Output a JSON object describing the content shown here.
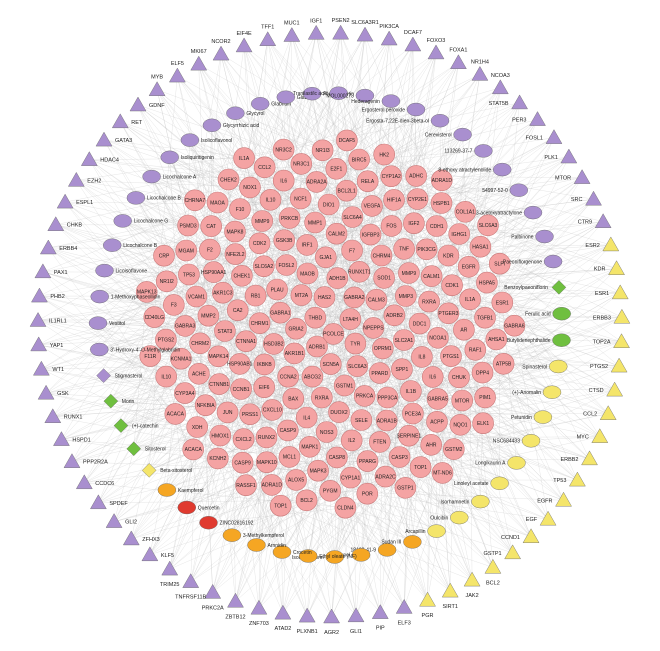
{
  "network": {
    "colors": {
      "target": "#f4a3a3",
      "target_stroke": "#c97a7a",
      "purple": "#a98fcf",
      "green": "#6fbf3f",
      "yellow": "#f4e56a",
      "orange": "#f5a623",
      "red": "#e03a2f",
      "edge": "#bdbdbd"
    },
    "targets": [
      "PCOLCE",
      "THBD",
      "LTA4H",
      "ADRB1",
      "HAS2",
      "TYR",
      "GRIA2",
      "GABRA2",
      "SCN5A",
      "MT2A",
      "NPEPPS",
      "AKR1B1",
      "ADH1B",
      "SLC6A3",
      "GABRA1",
      "CALM3",
      "ABCG2",
      "MAOB",
      "OPRM1",
      "HSD3B2",
      "RUNX1T1",
      "GSTM1",
      "PLAU",
      "ADRB2",
      "CCNA2",
      "GJA1",
      "PPARD",
      "CHRM1",
      "SOD1",
      "RXRA",
      "FOSL2",
      "SLC2A1",
      "IKBKB",
      "F7",
      "PRKCA",
      "RB1",
      "MMP3",
      "BAX",
      "IRF1",
      "SPP1",
      "CTNNA1",
      "CHRM4",
      "DUOX2",
      "SLC6A2",
      "DDC1",
      "EIF6",
      "CALM2",
      "PPP3CA",
      "CA2",
      "MMP9",
      "IL4",
      "GSK3B",
      "IL8",
      "HSP90AB1",
      "IGFBP3",
      "SELE",
      "CHEK1",
      "RXRA",
      "CXCL10",
      "MMP1",
      "IL1B",
      "STAT3",
      "TNF",
      "NOS3",
      "CDK2",
      "NCOA1",
      "CCNB1",
      "SLC6A4",
      "ADRA1B",
      "AKR1C3",
      "CALM1",
      "CASP9",
      "PRKCB",
      "IL6",
      "MAPK14",
      "FOS",
      "IL2",
      "NFE2L2",
      "PTGER3",
      "PRSS1",
      "DIO1",
      "PCE3A",
      "MMP2",
      "PIK3CG",
      "MAPK1",
      "MMP9",
      "PTGS1",
      "CTNNB1",
      "VEGFA",
      "FTEN",
      "HSP90AA1",
      "CDK1",
      "RUNX2",
      "NCF1",
      "GABRA5",
      "CHRM2",
      "IGF2",
      "CASP8",
      "MAPK8",
      "AR",
      "JUN",
      "BCL2L1",
      "SERPINE1",
      "VCAM1",
      "KDR",
      "MCL1",
      "IL10",
      "CHUK",
      "ACHE",
      "HIF1A",
      "PPARG",
      "F2",
      "IL1A",
      "CXCL2",
      "ADRA2A",
      "ACPP",
      "GABRA3",
      "CDH1",
      "MAPK3",
      "F10",
      "RAF1",
      "NFKBIA",
      "RELA",
      "CASP3",
      "TP53",
      "EGFR",
      "MAPK10",
      "IL6",
      "MTOR",
      "KCNMA1",
      "CYP2E1",
      "CYP1A1",
      "CAT",
      "TGFB1",
      "HMOX1",
      "E2F1",
      "AHR",
      "F3",
      "IGHG1",
      "ALOX5",
      "NOX1",
      "DPP4",
      "CYP3A4",
      "CYP1A2",
      "ADRA2C",
      "MGAM",
      "HSPA5",
      "CASP9",
      "NR3C1",
      "NQO1",
      "PTGS2",
      "HSPB1",
      "PYGM",
      "MAOA",
      "AHSA1",
      "XDH",
      "BIRC5",
      "TOP1",
      "NR1I2",
      "HASA1",
      "ADRA1D",
      "CCL2",
      "PIM1",
      "IL10",
      "ADHC",
      "POR",
      "PSMD3",
      "ESR1",
      "KCNH2",
      "NR1I3",
      "GSTM2",
      "CD40LG",
      "COL1A1",
      "BCL2",
      "CHEK2",
      "ATP5B",
      "ACACA",
      "HK2",
      "GSTP1",
      "CRP",
      "SLPI",
      "RASSF1",
      "NR3C2",
      "ELK1",
      "F11R",
      "ADRA1D",
      "CLDN4",
      "CHRNA7",
      "GABRA6",
      "ACACA",
      "DCAF5",
      "MT-ND6",
      "MAPK13",
      "SLC6A3",
      "TOP1",
      "IL1A"
    ],
    "ring_shapes": [
      {
        "label": "ELF5",
        "shape": "triangle",
        "color": "purple"
      },
      {
        "label": "MKI67",
        "shape": "triangle",
        "color": "purple"
      },
      {
        "label": "NCOR2",
        "shape": "triangle",
        "color": "purple"
      },
      {
        "label": "EIF4E",
        "shape": "triangle",
        "color": "purple"
      },
      {
        "label": "TFF1",
        "shape": "triangle",
        "color": "purple"
      },
      {
        "label": "MUC1",
        "shape": "triangle",
        "color": "purple"
      },
      {
        "label": "IGF1",
        "shape": "triangle",
        "color": "purple"
      },
      {
        "label": "PSEN2",
        "shape": "triangle",
        "color": "purple"
      },
      {
        "label": "SLC6A3R1",
        "shape": "triangle",
        "color": "purple"
      },
      {
        "label": "PIK3CA",
        "shape": "triangle",
        "color": "purple"
      },
      {
        "label": "DCAF7",
        "shape": "triangle",
        "color": "purple"
      },
      {
        "label": "FOXO3",
        "shape": "triangle",
        "color": "purple"
      },
      {
        "label": "FOXA1",
        "shape": "triangle",
        "color": "purple"
      },
      {
        "label": "NR1H4",
        "shape": "triangle",
        "color": "purple"
      },
      {
        "label": "NCOA3",
        "shape": "triangle",
        "color": "purple"
      },
      {
        "label": "STAT5B",
        "shape": "triangle",
        "color": "purple"
      },
      {
        "label": "PER3",
        "shape": "triangle",
        "color": "purple"
      },
      {
        "label": "FOSL1",
        "shape": "triangle",
        "color": "purple"
      },
      {
        "label": "PLK1",
        "shape": "triangle",
        "color": "purple"
      },
      {
        "label": "MTOR",
        "shape": "triangle",
        "color": "purple"
      },
      {
        "label": "SRC",
        "shape": "triangle",
        "color": "purple"
      },
      {
        "label": "CTR9",
        "shape": "triangle",
        "color": "purple"
      },
      {
        "label": "ESR2",
        "shape": "triangle",
        "color": "yellow"
      },
      {
        "label": "KDR",
        "shape": "triangle",
        "color": "yellow"
      },
      {
        "label": "ESR1",
        "shape": "triangle",
        "color": "yellow"
      },
      {
        "label": "ERBB3",
        "shape": "triangle",
        "color": "yellow"
      },
      {
        "label": "TOP2A",
        "shape": "triangle",
        "color": "yellow"
      },
      {
        "label": "PTGS2",
        "shape": "triangle",
        "color": "yellow"
      },
      {
        "label": "CTSD",
        "shape": "triangle",
        "color": "yellow"
      },
      {
        "label": "CCL2",
        "shape": "triangle",
        "color": "yellow"
      },
      {
        "label": "MYC",
        "shape": "triangle",
        "color": "yellow"
      },
      {
        "label": "ERBB2",
        "shape": "triangle",
        "color": "yellow"
      },
      {
        "label": "TP53",
        "shape": "triangle",
        "color": "yellow"
      },
      {
        "label": "EGFR",
        "shape": "triangle",
        "color": "yellow"
      },
      {
        "label": "EGF",
        "shape": "triangle",
        "color": "yellow"
      },
      {
        "label": "CCND1",
        "shape": "triangle",
        "color": "yellow"
      },
      {
        "label": "GSTP1",
        "shape": "triangle",
        "color": "yellow"
      },
      {
        "label": "BCL2",
        "shape": "triangle",
        "color": "yellow"
      },
      {
        "label": "JAK2",
        "shape": "triangle",
        "color": "yellow"
      },
      {
        "label": "SIRT1",
        "shape": "triangle",
        "color": "yellow"
      },
      {
        "label": "PGR",
        "shape": "triangle",
        "color": "yellow"
      },
      {
        "label": "ELF3",
        "shape": "triangle",
        "color": "purple"
      },
      {
        "label": "PIP",
        "shape": "triangle",
        "color": "purple"
      },
      {
        "label": "GLI1",
        "shape": "triangle",
        "color": "purple"
      },
      {
        "label": "AGR2",
        "shape": "triangle",
        "color": "purple"
      },
      {
        "label": "PLXNB1",
        "shape": "triangle",
        "color": "purple"
      },
      {
        "label": "ATAD2",
        "shape": "triangle",
        "color": "purple"
      },
      {
        "label": "ZNF703",
        "shape": "triangle",
        "color": "purple"
      },
      {
        "label": "ZBTB12",
        "shape": "triangle",
        "color": "purple"
      },
      {
        "label": "PRKC2A",
        "shape": "triangle",
        "color": "purple"
      },
      {
        "label": "TNFRSF11B",
        "shape": "triangle",
        "color": "purple"
      },
      {
        "label": "TRIM25",
        "shape": "triangle",
        "color": "purple"
      },
      {
        "label": "KLF5",
        "shape": "triangle",
        "color": "purple"
      },
      {
        "label": "ZFHX3",
        "shape": "triangle",
        "color": "purple"
      },
      {
        "label": "GLI2",
        "shape": "triangle",
        "color": "purple"
      },
      {
        "label": "SPDEF",
        "shape": "triangle",
        "color": "purple"
      },
      {
        "label": "CCDC6",
        "shape": "triangle",
        "color": "purple"
      },
      {
        "label": "PPP2R2A",
        "shape": "triangle",
        "color": "purple"
      },
      {
        "label": "HSPD1",
        "shape": "triangle",
        "color": "purple"
      },
      {
        "label": "RUNX1",
        "shape": "triangle",
        "color": "purple"
      },
      {
        "label": "GSK",
        "shape": "triangle",
        "color": "purple"
      },
      {
        "label": "WT1",
        "shape": "triangle",
        "color": "purple"
      },
      {
        "label": "YAP1",
        "shape": "triangle",
        "color": "purple"
      },
      {
        "label": "IL1RL1",
        "shape": "triangle",
        "color": "purple"
      },
      {
        "label": "PHB2",
        "shape": "triangle",
        "color": "purple"
      },
      {
        "label": "PAX1",
        "shape": "triangle",
        "color": "purple"
      },
      {
        "label": "ERBB4",
        "shape": "triangle",
        "color": "purple"
      },
      {
        "label": "CHKB",
        "shape": "triangle",
        "color": "purple"
      },
      {
        "label": "ESPL1",
        "shape": "triangle",
        "color": "purple"
      },
      {
        "label": "EZH2",
        "shape": "triangle",
        "color": "purple"
      },
      {
        "label": "HDAC4",
        "shape": "triangle",
        "color": "purple"
      },
      {
        "label": "GATA3",
        "shape": "triangle",
        "color": "purple"
      },
      {
        "label": "RET",
        "shape": "triangle",
        "color": "purple"
      },
      {
        "label": "GDNF",
        "shape": "triangle",
        "color": "purple"
      },
      {
        "label": "MYB",
        "shape": "triangle",
        "color": "purple"
      }
    ],
    "compounds": [
      {
        "label": "Glycyrol",
        "shape": "ellipse",
        "color": "purple"
      },
      {
        "label": "Glabridin",
        "shape": "ellipse",
        "color": "purple"
      },
      {
        "label": "Glabrene",
        "shape": "ellipse",
        "color": "purple"
      },
      {
        "label": "Formononetin",
        "shape": "ellipse",
        "color": "purple"
      },
      {
        "label": "Tranilast/ic acid",
        "shape": "ellipse",
        "color": "purple"
      },
      {
        "label": "MOL000273",
        "shape": "ellipse",
        "color": "purple"
      },
      {
        "label": "Hederagenin",
        "shape": "ellipse",
        "color": "purple"
      },
      {
        "label": "Ergosterol peroxide",
        "shape": "ellipse",
        "color": "purple"
      },
      {
        "label": "Ergosta-7,22E-dien-3beta-ol",
        "shape": "ellipse",
        "color": "purple"
      },
      {
        "label": "Cerevisterol",
        "shape": "ellipse",
        "color": "purple"
      },
      {
        "label": "113269-37-7",
        "shape": "ellipse",
        "color": "purple"
      },
      {
        "label": "8-ethoxy atractylenolide",
        "shape": "ellipse",
        "color": "purple"
      },
      {
        "label": "54997-52-0",
        "shape": "ellipse",
        "color": "purple"
      },
      {
        "label": "3-acetoxyatractylone",
        "shape": "ellipse",
        "color": "purple"
      },
      {
        "label": "Palbinone",
        "shape": "ellipse",
        "color": "purple"
      },
      {
        "label": "Paeoniflorgenone",
        "shape": "ellipse",
        "color": "purple"
      },
      {
        "label": "Benzoylpaeoniflorin",
        "shape": "diamond",
        "color": "green"
      },
      {
        "label": "Ferulic acid",
        "shape": "ellipse",
        "color": "green"
      },
      {
        "label": "Butylidenephthalide",
        "shape": "ellipse",
        "color": "green"
      },
      {
        "label": "Spinasterol",
        "shape": "ellipse",
        "color": "yellow"
      },
      {
        "label": "(+)-Anomalin",
        "shape": "ellipse",
        "color": "yellow"
      },
      {
        "label": "Petunidin",
        "shape": "ellipse",
        "color": "yellow"
      },
      {
        "label": "NSC684433",
        "shape": "ellipse",
        "color": "yellow"
      },
      {
        "label": "Longikaurin A",
        "shape": "ellipse",
        "color": "yellow"
      },
      {
        "label": "Linoleyl acetate",
        "shape": "ellipse",
        "color": "yellow"
      },
      {
        "label": "Isorhamnetin",
        "shape": "ellipse",
        "color": "yellow"
      },
      {
        "label": "Oulcibin",
        "shape": "ellipse",
        "color": "yellow"
      },
      {
        "label": "Arcapillin",
        "shape": "ellipse",
        "color": "yellow"
      },
      {
        "label": "Sudan III",
        "shape": "ellipse",
        "color": "orange"
      },
      {
        "label": "18103-41-9",
        "shape": "ellipse",
        "color": "orange"
      },
      {
        "label": "Mandenol",
        "shape": "ellipse",
        "color": "orange"
      },
      {
        "label": "Isoimperatorin",
        "shape": "ellipse",
        "color": "orange"
      },
      {
        "label": "Ethyl oleate (NF)",
        "shape": "ellipse",
        "color": "orange"
      },
      {
        "label": "Crocetin",
        "shape": "ellipse",
        "color": "orange"
      },
      {
        "label": "Arnnidin",
        "shape": "ellipse",
        "color": "orange"
      },
      {
        "label": "3-Methylkempferol",
        "shape": "ellipse",
        "color": "orange"
      },
      {
        "label": "ZINC02816192",
        "shape": "ellipse",
        "color": "red"
      },
      {
        "label": "Quercetin",
        "shape": "ellipse",
        "color": "red"
      },
      {
        "label": "Kaempferol",
        "shape": "ellipse",
        "color": "orange"
      },
      {
        "label": "Beta-sitosterol",
        "shape": "diamond",
        "color": "yellow"
      },
      {
        "label": "Sitosterol",
        "shape": "diamond",
        "color": "green"
      },
      {
        "label": "(+)-catechin",
        "shape": "diamond",
        "color": "green"
      },
      {
        "label": "Morin",
        "shape": "diamond",
        "color": "green"
      },
      {
        "label": "Stigmasterol",
        "shape": "diamond",
        "color": "purple"
      },
      {
        "label": "3'-Hydroxy-4'-O-Methylglabridin",
        "shape": "ellipse",
        "color": "purple"
      },
      {
        "label": "Vestitol",
        "shape": "ellipse",
        "color": "purple"
      },
      {
        "label": "1-Methoxyphaseollidin",
        "shape": "ellipse",
        "color": "purple"
      },
      {
        "label": "Licoisoflavone",
        "shape": "ellipse",
        "color": "purple"
      },
      {
        "label": "Licochalcone B",
        "shape": "ellipse",
        "color": "purple"
      },
      {
        "label": "Licochalcone G",
        "shape": "ellipse",
        "color": "purple"
      },
      {
        "label": "Licochalcone B",
        "shape": "ellipse",
        "color": "purple"
      },
      {
        "label": "Licochalcone A",
        "shape": "ellipse",
        "color": "purple"
      },
      {
        "label": "Isoliquiritigenin",
        "shape": "ellipse",
        "color": "purple"
      },
      {
        "label": "Isolicoflavonol",
        "shape": "ellipse",
        "color": "purple"
      },
      {
        "label": "Glycyrrhizic acid",
        "shape": "ellipse",
        "color": "purple"
      }
    ]
  }
}
